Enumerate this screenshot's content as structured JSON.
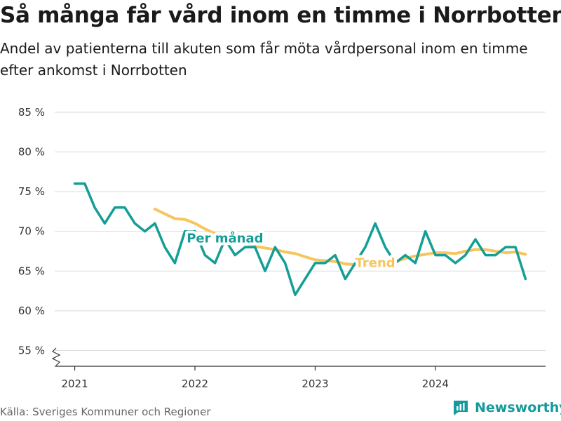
{
  "title": "Så många får vård inom en timme i Norrbotten",
  "subtitle": "Andel av patienterna till akuten som får möta vårdpersonal inom en timme efter ankomst i Norrbotten",
  "source": "Källa: Sveriges Kommuner och Regioner",
  "brand": "Newsworthy",
  "colors": {
    "monthly": "#149e96",
    "trend": "#f6c55e",
    "brand": "#159a9c"
  },
  "chart_data": {
    "type": "line",
    "title": "Så många får vård inom en timme i Norrbotten",
    "subtitle": "Andel av patienterna till akuten som får möta vårdpersonal inom en timme efter ankomst i Norrbotten",
    "xlabel": "",
    "ylabel": "",
    "xlim": [
      "2020-11",
      "2024-12"
    ],
    "ylim": [
      55,
      85
    ],
    "y_axis_break": true,
    "grid": true,
    "x_ticks": [
      {
        "x": "2021-01",
        "label": "2021"
      },
      {
        "x": "2022-01",
        "label": "2022"
      },
      {
        "x": "2023-01",
        "label": "2023"
      },
      {
        "x": "2024-01",
        "label": "2024"
      }
    ],
    "y_ticks": [
      {
        "y": 55,
        "label": "55 %"
      },
      {
        "y": 60,
        "label": "60 %"
      },
      {
        "y": 65,
        "label": "65 %"
      },
      {
        "y": 70,
        "label": "70 %"
      },
      {
        "y": 75,
        "label": "75 %"
      },
      {
        "y": 80,
        "label": "80 %"
      },
      {
        "y": 85,
        "label": "85 %"
      }
    ],
    "series": [
      {
        "name": "Trend",
        "x": [
          "2021-09",
          "2021-10",
          "2021-11",
          "2021-12",
          "2022-01",
          "2022-02",
          "2022-03",
          "2022-04",
          "2022-05",
          "2022-06",
          "2022-07",
          "2022-08",
          "2022-09",
          "2022-10",
          "2022-11",
          "2022-12",
          "2023-01",
          "2023-02",
          "2023-03",
          "2023-04",
          "2023-05",
          "2023-06",
          "2023-07",
          "2023-08",
          "2023-09",
          "2023-10",
          "2023-11",
          "2023-12",
          "2024-01",
          "2024-02",
          "2024-03",
          "2024-04",
          "2024-05",
          "2024-06",
          "2024-07",
          "2024-08",
          "2024-09",
          "2024-10"
        ],
        "values": [
          72.8,
          72.2,
          71.6,
          71.5,
          71.0,
          70.3,
          69.7,
          69.4,
          69.0,
          68.5,
          68.1,
          67.9,
          67.7,
          67.4,
          67.2,
          66.8,
          66.4,
          66.3,
          66.2,
          65.9,
          65.8,
          65.9,
          66.0,
          66.1,
          66.2,
          66.6,
          66.9,
          67.1,
          67.3,
          67.3,
          67.2,
          67.5,
          67.7,
          67.7,
          67.5,
          67.3,
          67.4,
          67.1
        ]
      },
      {
        "name": "Per månad",
        "x": [
          "2021-01",
          "2021-02",
          "2021-03",
          "2021-04",
          "2021-05",
          "2021-06",
          "2021-07",
          "2021-08",
          "2021-09",
          "2021-10",
          "2021-11",
          "2021-12",
          "2022-01",
          "2022-02",
          "2022-03",
          "2022-04",
          "2022-05",
          "2022-06",
          "2022-07",
          "2022-08",
          "2022-09",
          "2022-10",
          "2022-11",
          "2022-12",
          "2023-01",
          "2023-02",
          "2023-03",
          "2023-04",
          "2023-05",
          "2023-06",
          "2023-07",
          "2023-08",
          "2023-09",
          "2023-10",
          "2023-11",
          "2023-12",
          "2024-01",
          "2024-02",
          "2024-03",
          "2024-04",
          "2024-05",
          "2024-06",
          "2024-07",
          "2024-08",
          "2024-09",
          "2024-10"
        ],
        "values": [
          76,
          76,
          73,
          71,
          73,
          73,
          71,
          70,
          71,
          68,
          66,
          70,
          70,
          67,
          66,
          69,
          67,
          68,
          68,
          65,
          68,
          66,
          62,
          64,
          66,
          66,
          67,
          64,
          66,
          68,
          71,
          68,
          66,
          67,
          66,
          70,
          67,
          67,
          66,
          67,
          69,
          67,
          67,
          68,
          68,
          64
        ]
      }
    ],
    "annotations": [
      "Per månad",
      "Trend"
    ]
  }
}
